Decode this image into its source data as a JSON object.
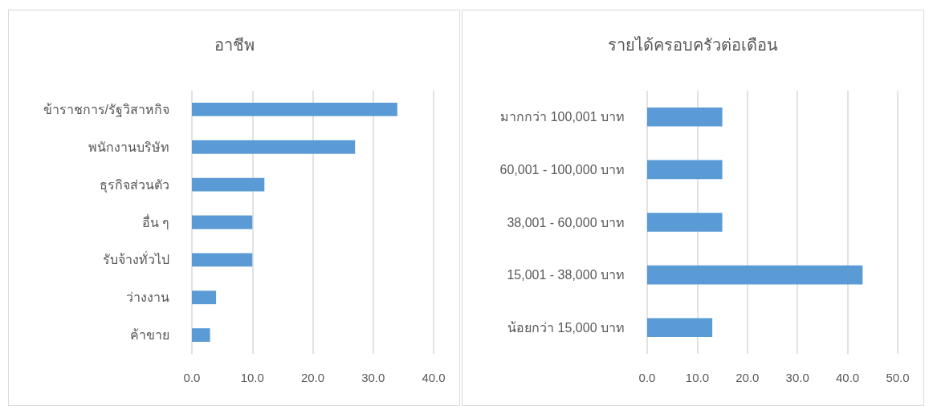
{
  "chart_data": [
    {
      "type": "bar",
      "orientation": "horizontal",
      "title": "อาชีพ",
      "categories": [
        "ข้าราชการ/รัฐวิสาหกิจ",
        "พนักงานบริษัท",
        "ธุรกิจส่วนตัว",
        "อื่น ๆ",
        "รับจ้างทั่วไป",
        "ว่างงาน",
        "ค้าขาย"
      ],
      "values": [
        34,
        27,
        12,
        10,
        10,
        4,
        3
      ],
      "color": "#5b9bd5",
      "xlim": [
        0,
        40
      ],
      "xticks": [
        {
          "value": 0,
          "label": "0.0"
        },
        {
          "value": 10,
          "label": "10.0"
        },
        {
          "value": 20,
          "label": "20.0"
        },
        {
          "value": 30,
          "label": "30.0"
        },
        {
          "value": 40,
          "label": "40.0"
        }
      ],
      "grid": "x"
    },
    {
      "type": "bar",
      "orientation": "horizontal",
      "title": "รายได้ครอบครัวต่อเดือน",
      "categories": [
        "มากกว่า 100,001 บาท",
        "60,001 - 100,000 บาท",
        "38,001 - 60,000 บาท",
        "15,001 - 38,000 บาท",
        "น้อยกว่า 15,000 บาท"
      ],
      "values": [
        15,
        15,
        15,
        43,
        13
      ],
      "color": "#5b9bd5",
      "xlim": [
        0,
        50
      ],
      "xticks": [
        {
          "value": 0,
          "label": "0.0"
        },
        {
          "value": 10,
          "label": "10.0"
        },
        {
          "value": 20,
          "label": "20.0"
        },
        {
          "value": 30,
          "label": "30.0"
        },
        {
          "value": 40,
          "label": "40.0"
        },
        {
          "value": 50,
          "label": "50.0"
        }
      ],
      "grid": "x"
    }
  ]
}
